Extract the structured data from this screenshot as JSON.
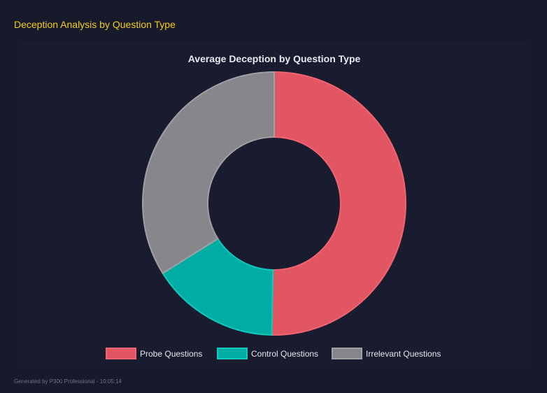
{
  "header": {
    "title": "Deception Analysis by Question Type"
  },
  "footer": {
    "text": "Generated by P300 Professional - 10:05:14"
  },
  "chart_data": {
    "type": "pie",
    "variant": "doughnut",
    "title": "Average Deception by Question Type",
    "categories": [
      "Probe Questions",
      "Control Questions",
      "Irrelevant Questions"
    ],
    "values": [
      50.3,
      15.8,
      33.9
    ],
    "colors": [
      "#e25563",
      "#00ada5",
      "#86868b"
    ],
    "border_colors": [
      "#f06470",
      "#10c9be",
      "#a0a0a4"
    ],
    "legend": "bottom"
  }
}
